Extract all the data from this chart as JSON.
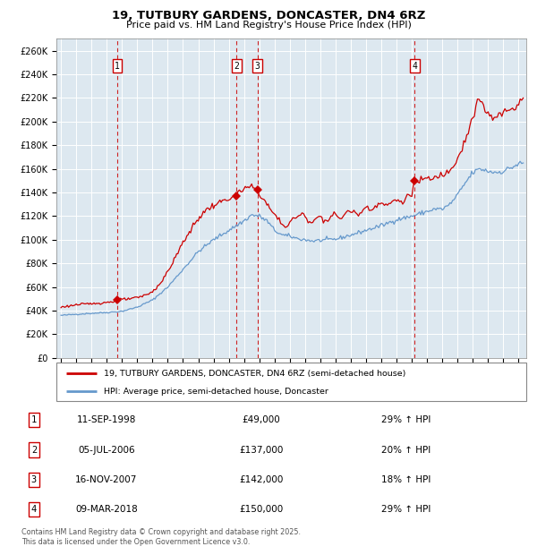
{
  "title": "19, TUTBURY GARDENS, DONCASTER, DN4 6RZ",
  "subtitle": "Price paid vs. HM Land Registry's House Price Index (HPI)",
  "legend_line1": "19, TUTBURY GARDENS, DONCASTER, DN4 6RZ (semi-detached house)",
  "legend_line2": "HPI: Average price, semi-detached house, Doncaster",
  "footer_line1": "Contains HM Land Registry data © Crown copyright and database right 2025.",
  "footer_line2": "This data is licensed under the Open Government Licence v3.0.",
  "transactions": [
    {
      "num": 1,
      "date": "11-SEP-1998",
      "price": 49000,
      "hpi_note": "29% ↑ HPI"
    },
    {
      "num": 2,
      "date": "05-JUL-2006",
      "price": 137000,
      "hpi_note": "20% ↑ HPI"
    },
    {
      "num": 3,
      "date": "16-NOV-2007",
      "price": 142000,
      "hpi_note": "18% ↑ HPI"
    },
    {
      "num": 4,
      "date": "09-MAR-2018",
      "price": 150000,
      "hpi_note": "29% ↑ HPI"
    }
  ],
  "transaction_dates_decimal": [
    1998.69,
    2006.51,
    2007.88,
    2018.18
  ],
  "transaction_prices": [
    49000,
    137000,
    142000,
    150000
  ],
  "red_color": "#cc0000",
  "blue_color": "#6699cc",
  "bg_color": "#dde8f0",
  "grid_color": "#ffffff",
  "ylim": [
    0,
    270000
  ],
  "ytick_step": 20000,
  "xlim_start": 1994.7,
  "xlim_end": 2025.5,
  "hpi_anchors": [
    [
      1995.0,
      36000
    ],
    [
      1996.0,
      37000
    ],
    [
      1997.0,
      37800
    ],
    [
      1998.0,
      38500
    ],
    [
      1999.0,
      39500
    ],
    [
      2000.0,
      43000
    ],
    [
      2001.0,
      49000
    ],
    [
      2002.0,
      60000
    ],
    [
      2003.0,
      75000
    ],
    [
      2004.0,
      90000
    ],
    [
      2005.0,
      100000
    ],
    [
      2006.0,
      108000
    ],
    [
      2007.0,
      116000
    ],
    [
      2007.5,
      121000
    ],
    [
      2008.0,
      120000
    ],
    [
      2008.5,
      116000
    ],
    [
      2009.0,
      108000
    ],
    [
      2009.5,
      104000
    ],
    [
      2010.0,
      103000
    ],
    [
      2010.5,
      101000
    ],
    [
      2011.0,
      100000
    ],
    [
      2011.5,
      99000
    ],
    [
      2012.0,
      99500
    ],
    [
      2013.0,
      100500
    ],
    [
      2014.0,
      104000
    ],
    [
      2015.0,
      108000
    ],
    [
      2016.0,
      112000
    ],
    [
      2017.0,
      117000
    ],
    [
      2018.0,
      120000
    ],
    [
      2018.5,
      122000
    ],
    [
      2019.0,
      124000
    ],
    [
      2019.5,
      126000
    ],
    [
      2020.0,
      126000
    ],
    [
      2020.5,
      130000
    ],
    [
      2021.0,
      138000
    ],
    [
      2021.5,
      148000
    ],
    [
      2022.0,
      157000
    ],
    [
      2022.5,
      160000
    ],
    [
      2023.0,
      158000
    ],
    [
      2023.5,
      157000
    ],
    [
      2024.0,
      158000
    ],
    [
      2024.5,
      161000
    ],
    [
      2025.0,
      164000
    ],
    [
      2025.3,
      165000
    ]
  ],
  "prop_anchors": [
    [
      1995.0,
      43000
    ],
    [
      1995.5,
      44000
    ],
    [
      1996.0,
      45000
    ],
    [
      1996.5,
      45500
    ],
    [
      1997.0,
      46000
    ],
    [
      1997.5,
      46500
    ],
    [
      1998.0,
      47000
    ],
    [
      1998.5,
      48000
    ],
    [
      1998.69,
      49000
    ],
    [
      1999.0,
      49500
    ],
    [
      1999.5,
      50000
    ],
    [
      2000.0,
      51000
    ],
    [
      2000.5,
      53000
    ],
    [
      2001.0,
      56000
    ],
    [
      2001.5,
      63000
    ],
    [
      2002.0,
      73000
    ],
    [
      2002.5,
      85000
    ],
    [
      2003.0,
      98000
    ],
    [
      2003.5,
      108000
    ],
    [
      2004.0,
      118000
    ],
    [
      2004.5,
      125000
    ],
    [
      2005.0,
      129000
    ],
    [
      2005.5,
      132000
    ],
    [
      2006.0,
      135000
    ],
    [
      2006.4,
      136000
    ],
    [
      2006.51,
      137000
    ],
    [
      2006.7,
      140000
    ],
    [
      2007.0,
      143000
    ],
    [
      2007.5,
      145000
    ],
    [
      2007.88,
      142000
    ],
    [
      2008.2,
      136000
    ],
    [
      2008.5,
      130000
    ],
    [
      2009.0,
      121000
    ],
    [
      2009.3,
      117000
    ],
    [
      2009.5,
      113000
    ],
    [
      2009.8,
      111000
    ],
    [
      2010.0,
      115000
    ],
    [
      2010.3,
      118000
    ],
    [
      2010.5,
      120000
    ],
    [
      2010.8,
      121000
    ],
    [
      2011.0,
      120000
    ],
    [
      2011.3,
      116000
    ],
    [
      2011.5,
      115000
    ],
    [
      2011.8,
      119000
    ],
    [
      2012.0,
      120000
    ],
    [
      2012.3,
      117000
    ],
    [
      2012.5,
      116000
    ],
    [
      2012.8,
      121000
    ],
    [
      2013.0,
      121000
    ],
    [
      2013.3,
      118000
    ],
    [
      2013.5,
      120000
    ],
    [
      2013.8,
      124000
    ],
    [
      2014.0,
      125000
    ],
    [
      2014.3,
      122000
    ],
    [
      2014.5,
      121000
    ],
    [
      2014.8,
      126000
    ],
    [
      2015.0,
      128000
    ],
    [
      2015.3,
      126000
    ],
    [
      2015.5,
      128000
    ],
    [
      2015.8,
      130000
    ],
    [
      2016.0,
      131000
    ],
    [
      2016.3,
      129000
    ],
    [
      2016.5,
      130000
    ],
    [
      2016.8,
      133000
    ],
    [
      2017.0,
      134000
    ],
    [
      2017.3,
      132000
    ],
    [
      2017.5,
      134000
    ],
    [
      2017.8,
      137000
    ],
    [
      2018.0,
      139000
    ],
    [
      2018.18,
      150000
    ],
    [
      2018.5,
      148000
    ],
    [
      2018.8,
      152000
    ],
    [
      2019.0,
      153000
    ],
    [
      2019.3,
      150000
    ],
    [
      2019.5,
      152000
    ],
    [
      2019.8,
      155000
    ],
    [
      2020.0,
      155000
    ],
    [
      2020.3,
      157000
    ],
    [
      2020.5,
      160000
    ],
    [
      2020.8,
      165000
    ],
    [
      2021.0,
      170000
    ],
    [
      2021.3,
      178000
    ],
    [
      2021.5,
      185000
    ],
    [
      2021.8,
      195000
    ],
    [
      2022.0,
      205000
    ],
    [
      2022.2,
      212000
    ],
    [
      2022.4,
      218000
    ],
    [
      2022.6,
      215000
    ],
    [
      2022.8,
      210000
    ],
    [
      2023.0,
      207000
    ],
    [
      2023.2,
      203000
    ],
    [
      2023.4,
      202000
    ],
    [
      2023.6,
      204000
    ],
    [
      2023.8,
      206000
    ],
    [
      2024.0,
      207000
    ],
    [
      2024.2,
      209000
    ],
    [
      2024.4,
      211000
    ],
    [
      2024.6,
      210000
    ],
    [
      2024.8,
      213000
    ],
    [
      2025.0,
      217000
    ],
    [
      2025.3,
      220000
    ]
  ]
}
